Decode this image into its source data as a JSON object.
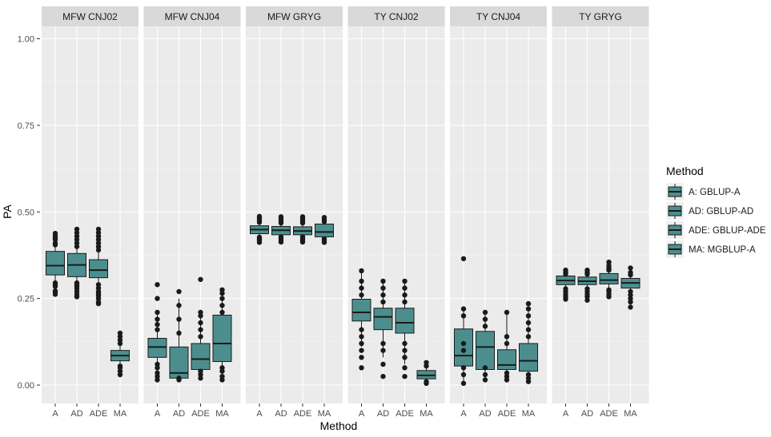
{
  "chart_data": {
    "type": "boxplot-faceted",
    "ylabel": "PA",
    "xlabel": "Method",
    "ylim": [
      0,
      1.08
    ],
    "yticks": [
      0.0,
      0.25,
      0.5,
      0.75,
      1.0
    ],
    "ytick_labels": [
      "0.00",
      "0.25",
      "0.50",
      "0.75",
      "1.00"
    ],
    "categories": [
      "A",
      "AD",
      "ADE",
      "MA"
    ],
    "fill_color": "#4c8e8e",
    "panel_bg": "#ebebeb",
    "strip_bg": "#d9d9d9",
    "legend": {
      "title": "Method",
      "entries": [
        "A: GBLUP-A",
        "AD: GBLUP-AD",
        "ADE: GBLUP-ADE",
        "MA: MGBLUP-A"
      ]
    },
    "facets": [
      {
        "title": "MFW CNJ02",
        "boxes": [
          {
            "cat": "A",
            "q1": 0.318,
            "median": 0.345,
            "q3": 0.386,
            "whislo": 0.275,
            "whishi": 0.435,
            "outliers": [
              0.272,
              0.268,
              0.262,
              0.285,
              0.29,
              0.295,
              0.405,
              0.41,
              0.42,
              0.425,
              0.43,
              0.438
            ]
          },
          {
            "cat": "AD",
            "q1": 0.313,
            "median": 0.347,
            "q3": 0.38,
            "whislo": 0.26,
            "whishi": 0.443,
            "outliers": [
              0.255,
              0.262,
              0.27,
              0.278,
              0.285,
              0.29,
              0.295,
              0.4,
              0.41,
              0.42,
              0.43,
              0.44,
              0.45
            ]
          },
          {
            "cat": "ADE",
            "q1": 0.31,
            "median": 0.332,
            "q3": 0.362,
            "whislo": 0.245,
            "whishi": 0.44,
            "outliers": [
              0.235,
              0.24,
              0.25,
              0.258,
              0.265,
              0.27,
              0.28,
              0.29,
              0.39,
              0.4,
              0.41,
              0.42,
              0.43,
              0.44,
              0.45
            ]
          },
          {
            "cat": "MA",
            "q1": 0.07,
            "median": 0.085,
            "q3": 0.1,
            "whislo": 0.03,
            "whishi": 0.145,
            "outliers": [
              0.03,
              0.04,
              0.05,
              0.055,
              0.12,
              0.13,
              0.14,
              0.15
            ]
          }
        ]
      },
      {
        "title": "MFW CNJ04",
        "boxes": [
          {
            "cat": "A",
            "q1": 0.08,
            "median": 0.11,
            "q3": 0.135,
            "whislo": 0.015,
            "whishi": 0.21,
            "outliers": [
              0.015,
              0.025,
              0.035,
              0.05,
              0.06,
              0.16,
              0.175,
              0.19,
              0.21,
              0.25,
              0.29
            ]
          },
          {
            "cat": "AD",
            "q1": 0.02,
            "median": 0.035,
            "q3": 0.11,
            "whislo": 0.015,
            "whishi": 0.25,
            "outliers": [
              0.015,
              0.02,
              0.15,
              0.19,
              0.23,
              0.27
            ]
          },
          {
            "cat": "ADE",
            "q1": 0.045,
            "median": 0.075,
            "q3": 0.12,
            "whislo": 0.02,
            "whishi": 0.215,
            "outliers": [
              0.02,
              0.03,
              0.04,
              0.14,
              0.16,
              0.18,
              0.2,
              0.21,
              0.305
            ]
          },
          {
            "cat": "MA",
            "q1": 0.068,
            "median": 0.12,
            "q3": 0.202,
            "whislo": 0.015,
            "whishi": 0.275,
            "outliers": [
              0.015,
              0.025,
              0.04,
              0.05,
              0.21,
              0.23,
              0.25,
              0.265,
              0.275
            ]
          }
        ]
      },
      {
        "title": "MFW GRYG",
        "boxes": [
          {
            "cat": "A",
            "q1": 0.437,
            "median": 0.449,
            "q3": 0.46,
            "whislo": 0.415,
            "whishi": 0.487,
            "outliers": [
              0.412,
              0.418,
              0.422,
              0.427,
              0.47,
              0.476,
              0.482,
              0.487
            ]
          },
          {
            "cat": "AD",
            "q1": 0.434,
            "median": 0.447,
            "q3": 0.458,
            "whislo": 0.415,
            "whishi": 0.486,
            "outliers": [
              0.413,
              0.418,
              0.423,
              0.428,
              0.468,
              0.474,
              0.48,
              0.486
            ]
          },
          {
            "cat": "ADE",
            "q1": 0.434,
            "median": 0.445,
            "q3": 0.457,
            "whislo": 0.415,
            "whishi": 0.486,
            "outliers": [
              0.413,
              0.418,
              0.423,
              0.428,
              0.468,
              0.474,
              0.48,
              0.486
            ]
          },
          {
            "cat": "MA",
            "q1": 0.428,
            "median": 0.442,
            "q3": 0.465,
            "whislo": 0.413,
            "whishi": 0.484,
            "outliers": [
              0.412,
              0.417,
              0.422,
              0.472,
              0.478,
              0.484
            ]
          }
        ]
      },
      {
        "title": "TY CNJ02",
        "boxes": [
          {
            "cat": "A",
            "q1": 0.185,
            "median": 0.21,
            "q3": 0.248,
            "whislo": 0.11,
            "whishi": 0.325,
            "outliers": [
              0.05,
              0.08,
              0.1,
              0.12,
              0.14,
              0.16,
              0.26,
              0.28,
              0.3,
              0.33
            ]
          },
          {
            "cat": "AD",
            "q1": 0.16,
            "median": 0.197,
            "q3": 0.222,
            "whislo": 0.08,
            "whishi": 0.295,
            "outliers": [
              0.025,
              0.06,
              0.1,
              0.12,
              0.24,
              0.26,
              0.28,
              0.3
            ]
          },
          {
            "cat": "ADE",
            "q1": 0.15,
            "median": 0.18,
            "q3": 0.222,
            "whislo": 0.06,
            "whishi": 0.3,
            "outliers": [
              0.025,
              0.05,
              0.08,
              0.1,
              0.12,
              0.24,
              0.26,
              0.28,
              0.3
            ]
          },
          {
            "cat": "MA",
            "q1": 0.018,
            "median": 0.028,
            "q3": 0.042,
            "whislo": 0.005,
            "whishi": 0.065,
            "outliers": [
              0.005,
              0.01,
              0.055,
              0.065
            ]
          }
        ]
      },
      {
        "title": "TY CNJ04",
        "boxes": [
          {
            "cat": "A",
            "q1": 0.055,
            "median": 0.085,
            "q3": 0.162,
            "whislo": 0.005,
            "whishi": 0.22,
            "outliers": [
              0.005,
              0.03,
              0.05,
              0.1,
              0.12,
              0.2,
              0.22,
              0.365
            ]
          },
          {
            "cat": "AD",
            "q1": 0.045,
            "median": 0.11,
            "q3": 0.155,
            "whislo": 0.015,
            "whishi": 0.21,
            "outliers": [
              0.015,
              0.03,
              0.05,
              0.17,
              0.19,
              0.21
            ]
          },
          {
            "cat": "ADE",
            "q1": 0.045,
            "median": 0.058,
            "q3": 0.102,
            "whislo": 0.015,
            "whishi": 0.21,
            "outliers": [
              0.015,
              0.025,
              0.035,
              0.12,
              0.14,
              0.21
            ]
          },
          {
            "cat": "MA",
            "q1": 0.04,
            "median": 0.07,
            "q3": 0.12,
            "whislo": 0.01,
            "whishi": 0.235,
            "outliers": [
              0.01,
              0.02,
              0.03,
              0.14,
              0.16,
              0.18,
              0.2,
              0.22,
              0.235
            ]
          }
        ]
      },
      {
        "title": "TY GRYG",
        "boxes": [
          {
            "cat": "A",
            "q1": 0.29,
            "median": 0.302,
            "q3": 0.315,
            "whislo": 0.255,
            "whishi": 0.33,
            "outliers": [
              0.248,
              0.255,
              0.262,
              0.27,
              0.278,
              0.32,
              0.325,
              0.332
            ]
          },
          {
            "cat": "AD",
            "q1": 0.29,
            "median": 0.3,
            "q3": 0.312,
            "whislo": 0.26,
            "whishi": 0.33,
            "outliers": [
              0.245,
              0.255,
              0.262,
              0.27,
              0.278,
              0.32,
              0.325,
              0.332
            ]
          },
          {
            "cat": "ADE",
            "q1": 0.292,
            "median": 0.303,
            "q3": 0.322,
            "whislo": 0.262,
            "whishi": 0.35,
            "outliers": [
              0.255,
              0.262,
              0.27,
              0.275,
              0.332,
              0.338,
              0.345,
              0.355
            ]
          },
          {
            "cat": "MA",
            "q1": 0.28,
            "median": 0.295,
            "q3": 0.308,
            "whislo": 0.25,
            "whishi": 0.33,
            "outliers": [
              0.225,
              0.24,
              0.25,
              0.26,
              0.27,
              0.318,
              0.325,
              0.338
            ]
          }
        ]
      }
    ]
  }
}
